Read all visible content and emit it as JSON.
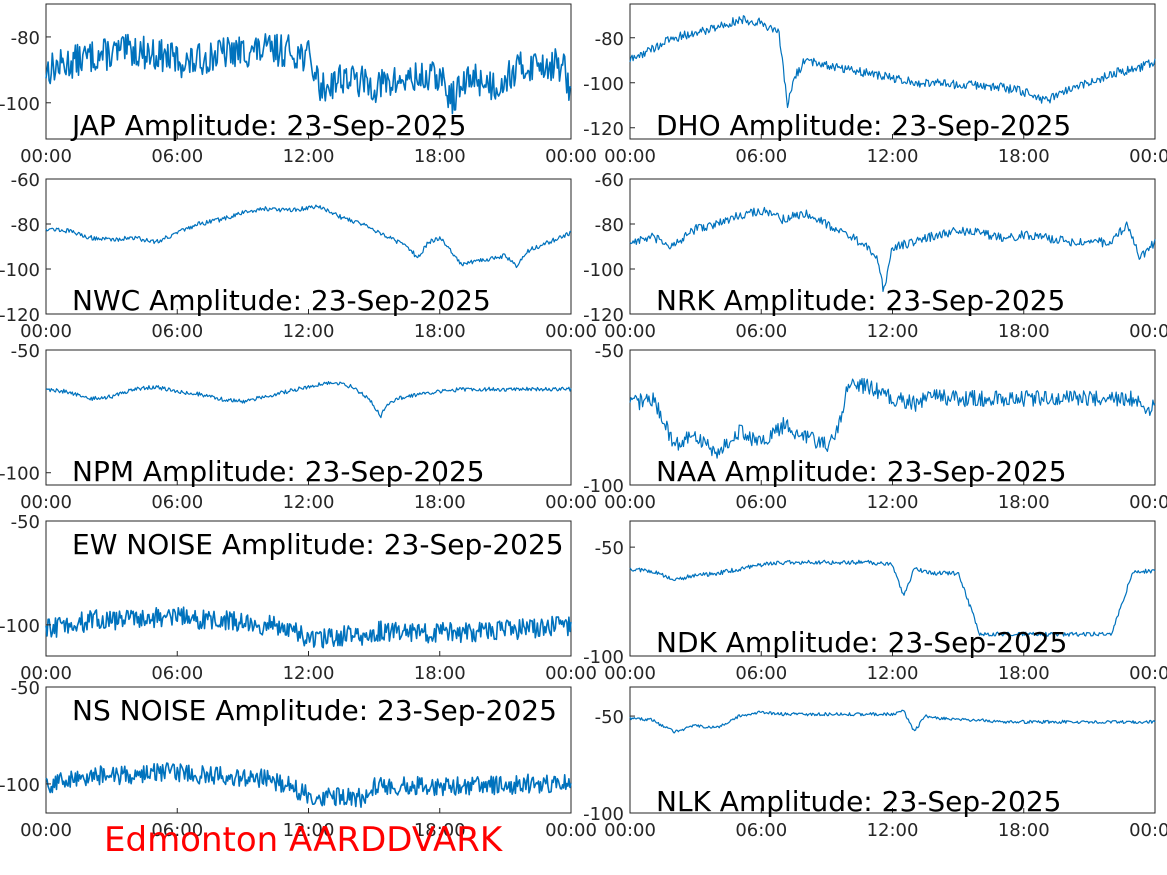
{
  "figure": {
    "footer": "Edmonton AARDDVARK",
    "footer_color": "#ff0000",
    "line_color": "#0072bd"
  },
  "chart_data": [
    {
      "type": "line",
      "title": "JAP Amplitude: 23-Sep-2025",
      "xticks": [
        "00:00",
        "06:00",
        "12:00",
        "18:00",
        "00:00"
      ],
      "xlim": [
        0,
        24
      ],
      "yticks": [
        "-80",
        "-100"
      ],
      "ylim": [
        -111,
        -70
      ],
      "noise": 5,
      "series": [
        {
          "x": [
            0,
            2,
            4,
            5.5,
            6.5,
            8,
            10,
            11,
            12,
            12.6,
            13.5,
            15,
            16.5,
            18,
            18.5,
            19.5,
            20.5,
            21.5,
            22.5,
            23.7,
            24
          ],
          "y": [
            -90,
            -86,
            -84,
            -86,
            -88,
            -85,
            -84,
            -84,
            -86,
            -96,
            -92,
            -95,
            -93,
            -92,
            -99,
            -92,
            -95,
            -90,
            -88,
            -89,
            -100
          ]
        }
      ]
    },
    {
      "type": "line",
      "title": "DHO Amplitude: 23-Sep-2025",
      "xticks": [
        "00:00",
        "06:00",
        "12:00",
        "18:00",
        "00:00"
      ],
      "xlim": [
        0,
        24
      ],
      "yticks": [
        "-80",
        "-100",
        "-120"
      ],
      "ylim": [
        -125,
        -65
      ],
      "noise": 2,
      "series": [
        {
          "x": [
            0,
            1,
            2,
            3,
            4,
            5,
            6,
            6.8,
            7.2,
            7.5,
            8,
            9,
            10,
            11,
            12,
            13,
            14,
            15,
            16,
            17,
            18,
            19,
            20,
            21,
            22,
            23,
            24
          ],
          "y": [
            -90,
            -85,
            -80,
            -78,
            -75,
            -72,
            -73,
            -78,
            -110,
            -98,
            -90,
            -92,
            -94,
            -96,
            -98,
            -100,
            -100,
            -101,
            -101,
            -102,
            -104,
            -108,
            -103,
            -100,
            -96,
            -94,
            -91
          ]
        }
      ]
    },
    {
      "type": "line",
      "title": "NWC Amplitude: 23-Sep-2025",
      "xticks": [
        "00:00",
        "06:00",
        "12:00",
        "18:00",
        "00:00"
      ],
      "xlim": [
        0,
        24
      ],
      "yticks": [
        "-60",
        "-80",
        "-100",
        "-120"
      ],
      "ylim": [
        -120,
        -60
      ],
      "noise": 1,
      "series": [
        {
          "x": [
            0,
            1,
            2,
            3,
            4,
            5,
            6,
            7,
            8,
            9,
            10,
            11,
            12,
            12.5,
            13.5,
            14.5,
            15.5,
            16.5,
            17,
            17.5,
            18,
            18.5,
            19,
            20,
            21,
            21.5,
            22,
            23,
            24
          ],
          "y": [
            -82,
            -83,
            -86,
            -87,
            -86,
            -88,
            -84,
            -80,
            -78,
            -75,
            -73,
            -74,
            -73,
            -72,
            -77,
            -80,
            -85,
            -90,
            -95,
            -88,
            -86,
            -92,
            -98,
            -96,
            -94,
            -99,
            -92,
            -88,
            -84
          ]
        }
      ]
    },
    {
      "type": "line",
      "title": "NRK Amplitude: 23-Sep-2025",
      "xticks": [
        "00:00",
        "06:00",
        "12:00",
        "18:00",
        "00:00"
      ],
      "xlim": [
        0,
        24
      ],
      "yticks": [
        "-60",
        "-80",
        "-100",
        "-120"
      ],
      "ylim": [
        -120,
        -60
      ],
      "noise": 2,
      "series": [
        {
          "x": [
            0,
            1,
            2,
            3,
            4,
            5,
            6,
            7,
            8,
            9,
            10,
            10.8,
            11.3,
            11.6,
            12,
            13,
            14,
            15,
            16,
            17,
            18,
            19,
            20,
            21,
            22,
            22.7,
            23.3,
            24
          ],
          "y": [
            -88,
            -86,
            -90,
            -82,
            -80,
            -76,
            -74,
            -78,
            -75,
            -80,
            -85,
            -90,
            -96,
            -110,
            -90,
            -88,
            -85,
            -83,
            -84,
            -86,
            -85,
            -86,
            -88,
            -87,
            -89,
            -80,
            -95,
            -88
          ]
        }
      ]
    },
    {
      "type": "line",
      "title": "NPM Amplitude: 23-Sep-2025",
      "xticks": [
        "00:00",
        "06:00",
        "12:00",
        "18:00",
        "00:00"
      ],
      "xlim": [
        0,
        24
      ],
      "yticks": [
        "-50",
        "-100"
      ],
      "ylim": [
        -105,
        -50
      ],
      "noise": 0.8,
      "series": [
        {
          "x": [
            0,
            1,
            2,
            3,
            4,
            5,
            6,
            7,
            8,
            9,
            10,
            11,
            12,
            13,
            14,
            14.8,
            15.3,
            15.6,
            16,
            17,
            18,
            19,
            20,
            21,
            22,
            23,
            24
          ],
          "y": [
            -66,
            -67,
            -70,
            -69,
            -66,
            -65,
            -67,
            -68,
            -70,
            -71,
            -69,
            -67,
            -65,
            -63,
            -65,
            -70,
            -77,
            -72,
            -70,
            -68,
            -67,
            -66,
            -66,
            -66,
            -66,
            -66,
            -66
          ]
        }
      ]
    },
    {
      "type": "line",
      "title": "NAA Amplitude: 23-Sep-2025",
      "xticks": [
        "00:00",
        "06:00",
        "12:00",
        "18:00",
        "00:00"
      ],
      "xlim": [
        0,
        24
      ],
      "yticks": [
        "-50",
        "-100"
      ],
      "ylim": [
        -100,
        -50
      ],
      "noise": 3,
      "series": [
        {
          "x": [
            0,
            1,
            1.5,
            2,
            3,
            4,
            5,
            6,
            7,
            8,
            9,
            9.5,
            10,
            11,
            12,
            13,
            14,
            15,
            16,
            17,
            18,
            19,
            20,
            21,
            22,
            23,
            23.5,
            24
          ],
          "y": [
            -70,
            -68,
            -75,
            -85,
            -82,
            -88,
            -80,
            -85,
            -78,
            -82,
            -85,
            -80,
            -62,
            -64,
            -68,
            -70,
            -67,
            -68,
            -68,
            -68,
            -68,
            -68,
            -68,
            -68,
            -68,
            -68,
            -72,
            -71
          ]
        }
      ]
    },
    {
      "type": "line",
      "title": "EW NOISE Amplitude: 23-Sep-2025",
      "xticks": [
        "00:00",
        "06:00",
        "12:00",
        "18:00",
        "00:00"
      ],
      "xlim": [
        0,
        24
      ],
      "yticks": [
        "-50",
        "-100"
      ],
      "ylim": [
        -115,
        -50
      ],
      "noise": 5,
      "series": [
        {
          "x": [
            0,
            2,
            4,
            6,
            8,
            10,
            11,
            12,
            13,
            14,
            14.5,
            15,
            16,
            18,
            20,
            22,
            24
          ],
          "y": [
            -102,
            -98,
            -97,
            -96,
            -98,
            -100,
            -102,
            -107,
            -106,
            -105,
            -108,
            -103,
            -103,
            -104,
            -103,
            -102,
            -100
          ]
        }
      ]
    },
    {
      "type": "line",
      "title": "NDK Amplitude: 23-Sep-2025",
      "xticks": [
        "00:00",
        "06:00",
        "12:00",
        "18:00",
        "00:00"
      ],
      "xlim": [
        0,
        24
      ],
      "yticks": [
        "-50",
        "-100"
      ],
      "ylim": [
        -100,
        -38
      ],
      "noise": 1,
      "series": [
        {
          "x": [
            0,
            1,
            1.5,
            2,
            3,
            4,
            5,
            6,
            7,
            8,
            9,
            10,
            11,
            12,
            12.5,
            13,
            14,
            15,
            16,
            17,
            18,
            19,
            20,
            21,
            22,
            23,
            24
          ],
          "y": [
            -60,
            -61,
            -63,
            -65,
            -63,
            -62,
            -60,
            -58,
            -57,
            -57,
            -57,
            -57,
            -57,
            -58,
            -72,
            -60,
            -62,
            -62,
            -90,
            -90,
            -90,
            -90,
            -90,
            -90,
            -90,
            -61,
            -61
          ]
        }
      ]
    },
    {
      "type": "line",
      "title": "NS NOISE Amplitude: 23-Sep-2025",
      "xticks": [
        "00:00",
        "06:00",
        "12:00",
        "18:00",
        "00:00"
      ],
      "xlim": [
        0,
        24
      ],
      "yticks": [
        "-50",
        "-100"
      ],
      "ylim": [
        -115,
        -50
      ],
      "noise": 5,
      "series": [
        {
          "x": [
            0,
            2,
            4,
            6,
            8,
            10,
            11,
            12,
            13,
            14,
            14.5,
            15,
            16,
            18,
            20,
            22,
            24
          ],
          "y": [
            -100,
            -96,
            -95,
            -94,
            -96,
            -97,
            -100,
            -106,
            -107,
            -106,
            -108,
            -101,
            -101,
            -101,
            -101,
            -100,
            -100
          ]
        }
      ]
    },
    {
      "type": "line",
      "title": "NLK Amplitude: 23-Sep-2025",
      "xticks": [
        "00:00",
        "06:00",
        "12:00",
        "18:00",
        "00:00"
      ],
      "xlim": [
        0,
        24
      ],
      "yticks": [
        "-50",
        "-100"
      ],
      "ylim": [
        -100,
        -35
      ],
      "noise": 0.8,
      "series": [
        {
          "x": [
            0,
            1,
            2,
            3,
            4,
            5,
            6,
            7,
            8,
            9,
            10,
            11,
            12,
            12.5,
            13,
            13.5,
            14,
            15,
            16,
            17,
            18,
            19,
            20,
            21,
            22,
            23,
            24
          ],
          "y": [
            -51,
            -52,
            -58,
            -55,
            -56,
            -50,
            -48,
            -49,
            -49,
            -49,
            -49,
            -49,
            -49,
            -47,
            -58,
            -50,
            -51,
            -52,
            -52,
            -53,
            -53,
            -53,
            -53,
            -53,
            -53,
            -53,
            -53
          ]
        }
      ]
    }
  ]
}
